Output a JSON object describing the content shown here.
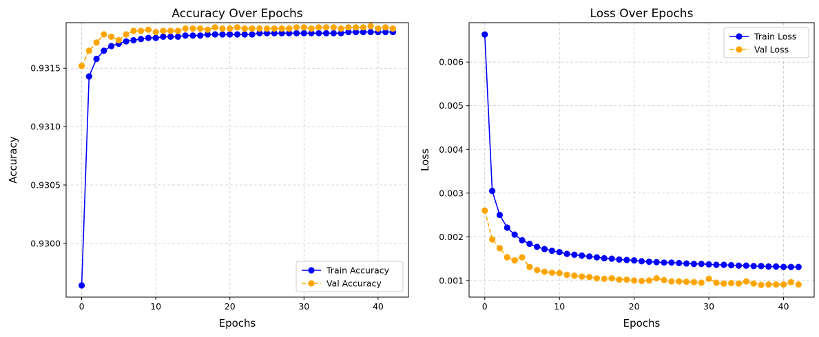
{
  "chart_data": [
    {
      "type": "line",
      "title": "Accuracy Over Epochs",
      "xlabel": "Epochs",
      "ylabel": "Accuracy",
      "xlim": [
        -2.1,
        44.1
      ],
      "ylim": [
        0.92954,
        0.93189
      ],
      "xticks": [
        0,
        10,
        20,
        30,
        40
      ],
      "yticks": [
        0.93,
        0.9305,
        0.931,
        0.9315
      ],
      "ytick_labels": [
        "0.9300",
        "0.9305",
        "0.9310",
        "0.9315"
      ],
      "grid": true,
      "legend_position": "lower-right",
      "x": [
        0,
        1,
        2,
        3,
        4,
        5,
        6,
        7,
        8,
        9,
        10,
        11,
        12,
        13,
        14,
        15,
        16,
        17,
        18,
        19,
        20,
        21,
        22,
        23,
        24,
        25,
        26,
        27,
        28,
        29,
        30,
        31,
        32,
        33,
        34,
        35,
        36,
        37,
        38,
        39,
        40,
        41,
        42
      ],
      "series": [
        {
          "name": "Train Accuracy",
          "color": "#0000ff",
          "style": "solid",
          "values": [
            0.92964,
            0.93143,
            0.93158,
            0.93165,
            0.93169,
            0.93171,
            0.93173,
            0.93174,
            0.93175,
            0.93176,
            0.93176,
            0.93177,
            0.93177,
            0.93177,
            0.93178,
            0.93178,
            0.93178,
            0.93179,
            0.93179,
            0.93179,
            0.93179,
            0.93179,
            0.93179,
            0.93179,
            0.9318,
            0.9318,
            0.9318,
            0.9318,
            0.9318,
            0.9318,
            0.9318,
            0.9318,
            0.9318,
            0.9318,
            0.9318,
            0.9318,
            0.93181,
            0.93181,
            0.93181,
            0.93181,
            0.93181,
            0.93181,
            0.93181
          ]
        },
        {
          "name": "Val Accuracy",
          "color": "#ffa500",
          "style": "dashed",
          "values": [
            0.93152,
            0.93165,
            0.93172,
            0.93179,
            0.93177,
            0.93174,
            0.93179,
            0.93182,
            0.93182,
            0.93183,
            0.93181,
            0.93182,
            0.93182,
            0.93182,
            0.93184,
            0.93184,
            0.93184,
            0.93183,
            0.93185,
            0.93184,
            0.93184,
            0.93185,
            0.93184,
            0.93184,
            0.93184,
            0.93184,
            0.93184,
            0.93184,
            0.93184,
            0.93185,
            0.93185,
            0.93184,
            0.93185,
            0.93185,
            0.93185,
            0.93184,
            0.93185,
            0.93185,
            0.93185,
            0.93186,
            0.93184,
            0.93185,
            0.93184
          ]
        }
      ]
    },
    {
      "type": "line",
      "title": "Loss Over Epochs",
      "xlabel": "Epochs",
      "ylabel": "Loss",
      "xlim": [
        -2.1,
        44.1
      ],
      "ylim": [
        0.00062,
        0.0069
      ],
      "xticks": [
        0,
        10,
        20,
        30,
        40
      ],
      "yticks": [
        0.001,
        0.002,
        0.003,
        0.004,
        0.005,
        0.006
      ],
      "ytick_labels": [
        "0.001",
        "0.002",
        "0.003",
        "0.004",
        "0.005",
        "0.006"
      ],
      "grid": true,
      "legend_position": "top-right",
      "x": [
        0,
        1,
        2,
        3,
        4,
        5,
        6,
        7,
        8,
        9,
        10,
        11,
        12,
        13,
        14,
        15,
        16,
        17,
        18,
        19,
        20,
        21,
        22,
        23,
        24,
        25,
        26,
        27,
        28,
        29,
        30,
        31,
        32,
        33,
        34,
        35,
        36,
        37,
        38,
        39,
        40,
        41,
        42
      ],
      "series": [
        {
          "name": "Train Loss",
          "color": "#0000ff",
          "style": "solid",
          "values": [
            0.00663,
            0.00305,
            0.0025,
            0.00221,
            0.00205,
            0.00192,
            0.00184,
            0.00177,
            0.00172,
            0.00168,
            0.00165,
            0.00161,
            0.00159,
            0.00157,
            0.00155,
            0.00153,
            0.00151,
            0.0015,
            0.00148,
            0.00147,
            0.00146,
            0.00144,
            0.00143,
            0.00142,
            0.00141,
            0.00141,
            0.0014,
            0.00139,
            0.00138,
            0.00138,
            0.00137,
            0.00136,
            0.00136,
            0.00135,
            0.00134,
            0.00134,
            0.00133,
            0.00133,
            0.00132,
            0.00132,
            0.00131,
            0.00131,
            0.00131
          ]
        },
        {
          "name": "Val Loss",
          "color": "#ffa500",
          "style": "dashed",
          "values": [
            0.0026,
            0.00194,
            0.00174,
            0.00153,
            0.00146,
            0.00153,
            0.00131,
            0.00124,
            0.0012,
            0.00118,
            0.00117,
            0.00113,
            0.00111,
            0.00109,
            0.00108,
            0.00105,
            0.00104,
            0.00105,
            0.00102,
            0.00102,
            0.001,
            0.00099,
            0.001,
            0.00105,
            0.00101,
            0.00098,
            0.00098,
            0.00097,
            0.00096,
            0.00095,
            0.00104,
            0.00095,
            0.00093,
            0.00094,
            0.00093,
            0.00098,
            0.00093,
            0.0009,
            0.00091,
            0.00091,
            0.00091,
            0.00096,
            0.00091
          ]
        }
      ]
    }
  ]
}
